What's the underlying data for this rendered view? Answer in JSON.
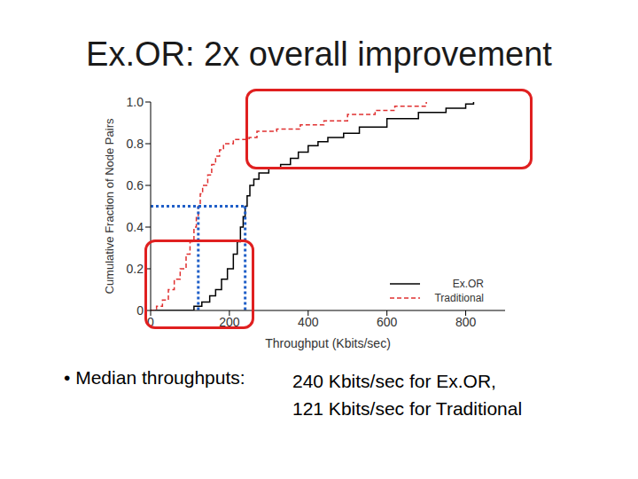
{
  "chart_data": {
    "type": "line",
    "title": "Ex.OR: 2x overall improvement",
    "x_label": "Throughput (Kbits/sec)",
    "y_label": "Cumulative Fraction of Node Pairs",
    "xlim": [
      0,
      900
    ],
    "xticks": [
      0,
      200,
      400,
      600,
      800
    ],
    "ylim": [
      0,
      1
    ],
    "yticks": [
      0,
      0.2,
      0.4,
      0.6,
      0.8,
      {
        "value": 1,
        "label": "1.0"
      }
    ],
    "grid": false,
    "legend": "lower right",
    "series": [
      {
        "name": "Ex.OR",
        "color": "#000000",
        "line_style": "solid",
        "x": [
          0,
          100,
          110,
          130,
          150,
          165,
          180,
          195,
          210,
          220,
          228,
          235,
          240,
          245,
          252,
          262,
          275,
          300,
          330,
          355,
          375,
          400,
          425,
          450,
          490,
          530,
          600,
          680,
          750,
          800,
          820
        ],
        "values": [
          0,
          0,
          0.02,
          0.04,
          0.07,
          0.1,
          0.15,
          0.2,
          0.27,
          0.33,
          0.4,
          0.45,
          0.5,
          0.55,
          0.6,
          0.63,
          0.66,
          0.68,
          0.7,
          0.73,
          0.76,
          0.79,
          0.81,
          0.83,
          0.85,
          0.88,
          0.92,
          0.95,
          0.97,
          0.99,
          1.0
        ],
        "median": {
          "x": 240,
          "y": 0.5
        }
      },
      {
        "name": "Traditional",
        "color": "#e03030",
        "line_style": "dashed",
        "x": [
          0,
          15,
          30,
          45,
          60,
          75,
          90,
          100,
          110,
          116,
          121,
          126,
          132,
          145,
          155,
          165,
          175,
          185,
          210,
          250,
          270,
          320,
          380,
          440,
          500,
          570,
          620,
          700
        ],
        "values": [
          0,
          0.02,
          0.05,
          0.1,
          0.15,
          0.2,
          0.27,
          0.33,
          0.4,
          0.45,
          0.5,
          0.56,
          0.6,
          0.65,
          0.7,
          0.74,
          0.77,
          0.8,
          0.82,
          0.83,
          0.86,
          0.87,
          0.89,
          0.91,
          0.94,
          0.96,
          0.98,
          1.0
        ],
        "median": {
          "x": 121,
          "y": 0.5
        }
      }
    ],
    "note": {
      "label": "• Median throughputs:",
      "lines": [
        "240 Kbits/sec for Ex.OR,",
        "121 Kbits/sec for Traditional"
      ]
    }
  }
}
